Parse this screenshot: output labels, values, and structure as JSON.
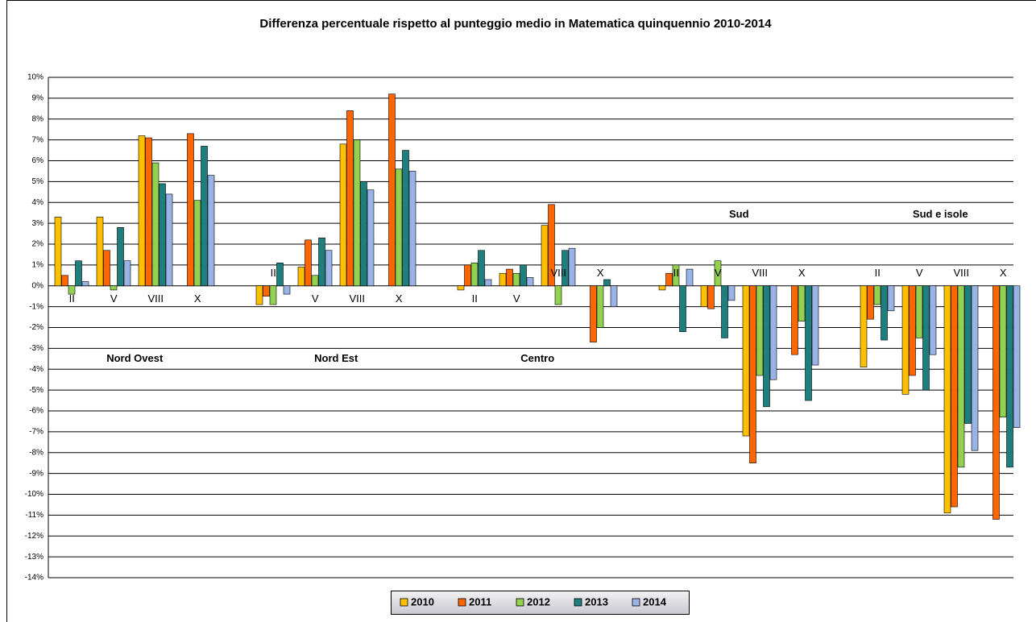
{
  "chart_data": {
    "type": "bar",
    "title": "Differenza percentuale rispetto al punteggio medio in Matematica quinquennio 2010-2014",
    "regions": [
      "Nord Ovest",
      "Nord Est",
      "Centro",
      "Sud",
      "Sud e isole"
    ],
    "categories": [
      "II",
      "V",
      "VIII",
      "X",
      "II",
      "V",
      "VIII",
      "X",
      "II",
      "V",
      "VIII",
      "X",
      "II",
      "V",
      "VIII",
      "X",
      "II",
      "V",
      "VIII",
      "X"
    ],
    "series": [
      {
        "name": "2010",
        "color": "#FFC000",
        "values": [
          3.3,
          3.3,
          7.2,
          null,
          -0.9,
          0.9,
          6.8,
          null,
          -0.2,
          0.6,
          2.9,
          null,
          -0.2,
          -1.0,
          -7.2,
          null,
          -3.9,
          -5.2,
          -10.9,
          null
        ]
      },
      {
        "name": "2011",
        "color": "#FF6600",
        "values": [
          0.5,
          1.7,
          7.1,
          7.3,
          -0.5,
          2.2,
          8.4,
          9.2,
          1.0,
          0.8,
          3.9,
          -2.7,
          0.6,
          -1.1,
          -8.5,
          -3.3,
          -1.6,
          -4.3,
          -10.6,
          -11.2
        ]
      },
      {
        "name": "2012",
        "color": "#92D050",
        "values": [
          -0.4,
          -0.2,
          5.9,
          4.1,
          -0.9,
          0.5,
          7.0,
          5.6,
          1.1,
          0.6,
          -0.9,
          -2.0,
          1.0,
          1.2,
          -4.3,
          -1.7,
          -0.9,
          -2.5,
          -8.7,
          -6.3
        ]
      },
      {
        "name": "2013",
        "color": "#1F7F7F",
        "values": [
          1.2,
          2.8,
          4.9,
          6.7,
          1.1,
          2.3,
          5.0,
          6.5,
          1.7,
          1.0,
          1.7,
          0.3,
          -2.2,
          -2.5,
          -5.8,
          -5.5,
          -2.6,
          -5.0,
          -6.6,
          -8.7
        ]
      },
      {
        "name": "2014",
        "color": "#99B3E6",
        "values": [
          0.2,
          1.2,
          4.4,
          5.3,
          -0.4,
          1.7,
          4.6,
          5.5,
          0.3,
          0.4,
          1.8,
          -1.0,
          0.8,
          -0.7,
          -4.5,
          -3.8,
          -1.2,
          -3.3,
          -7.9,
          -6.8
        ]
      }
    ],
    "ylim": [
      -14,
      10
    ],
    "yticks": [
      {
        "value": -14,
        "label": "-14%"
      },
      {
        "value": -13,
        "label": "-13%"
      },
      {
        "value": -12,
        "label": "-12%"
      },
      {
        "value": -11,
        "label": "-11%"
      },
      {
        "value": -10,
        "label": "-10%"
      },
      {
        "value": -9,
        "label": "-9%"
      },
      {
        "value": -8,
        "label": "-8%"
      },
      {
        "value": -7,
        "label": "-7%"
      },
      {
        "value": -6,
        "label": "-6%"
      },
      {
        "value": -5,
        "label": "-5%"
      },
      {
        "value": -4,
        "label": "-4%"
      },
      {
        "value": -3,
        "label": "-3%"
      },
      {
        "value": -2,
        "label": "-2%"
      },
      {
        "value": -1,
        "label": "-1%"
      },
      {
        "value": 0,
        "label": "0%"
      },
      {
        "value": 1,
        "label": "1%"
      },
      {
        "value": 2,
        "label": "2%"
      },
      {
        "value": 3,
        "label": "3%"
      },
      {
        "value": 4,
        "label": "4%"
      },
      {
        "value": 5,
        "label": "5%"
      },
      {
        "value": 6,
        "label": "6%"
      },
      {
        "value": 7,
        "label": "7%"
      },
      {
        "value": 8,
        "label": "8%"
      },
      {
        "value": 9,
        "label": "9%"
      },
      {
        "value": 10,
        "label": "10%"
      }
    ],
    "grid": true
  }
}
